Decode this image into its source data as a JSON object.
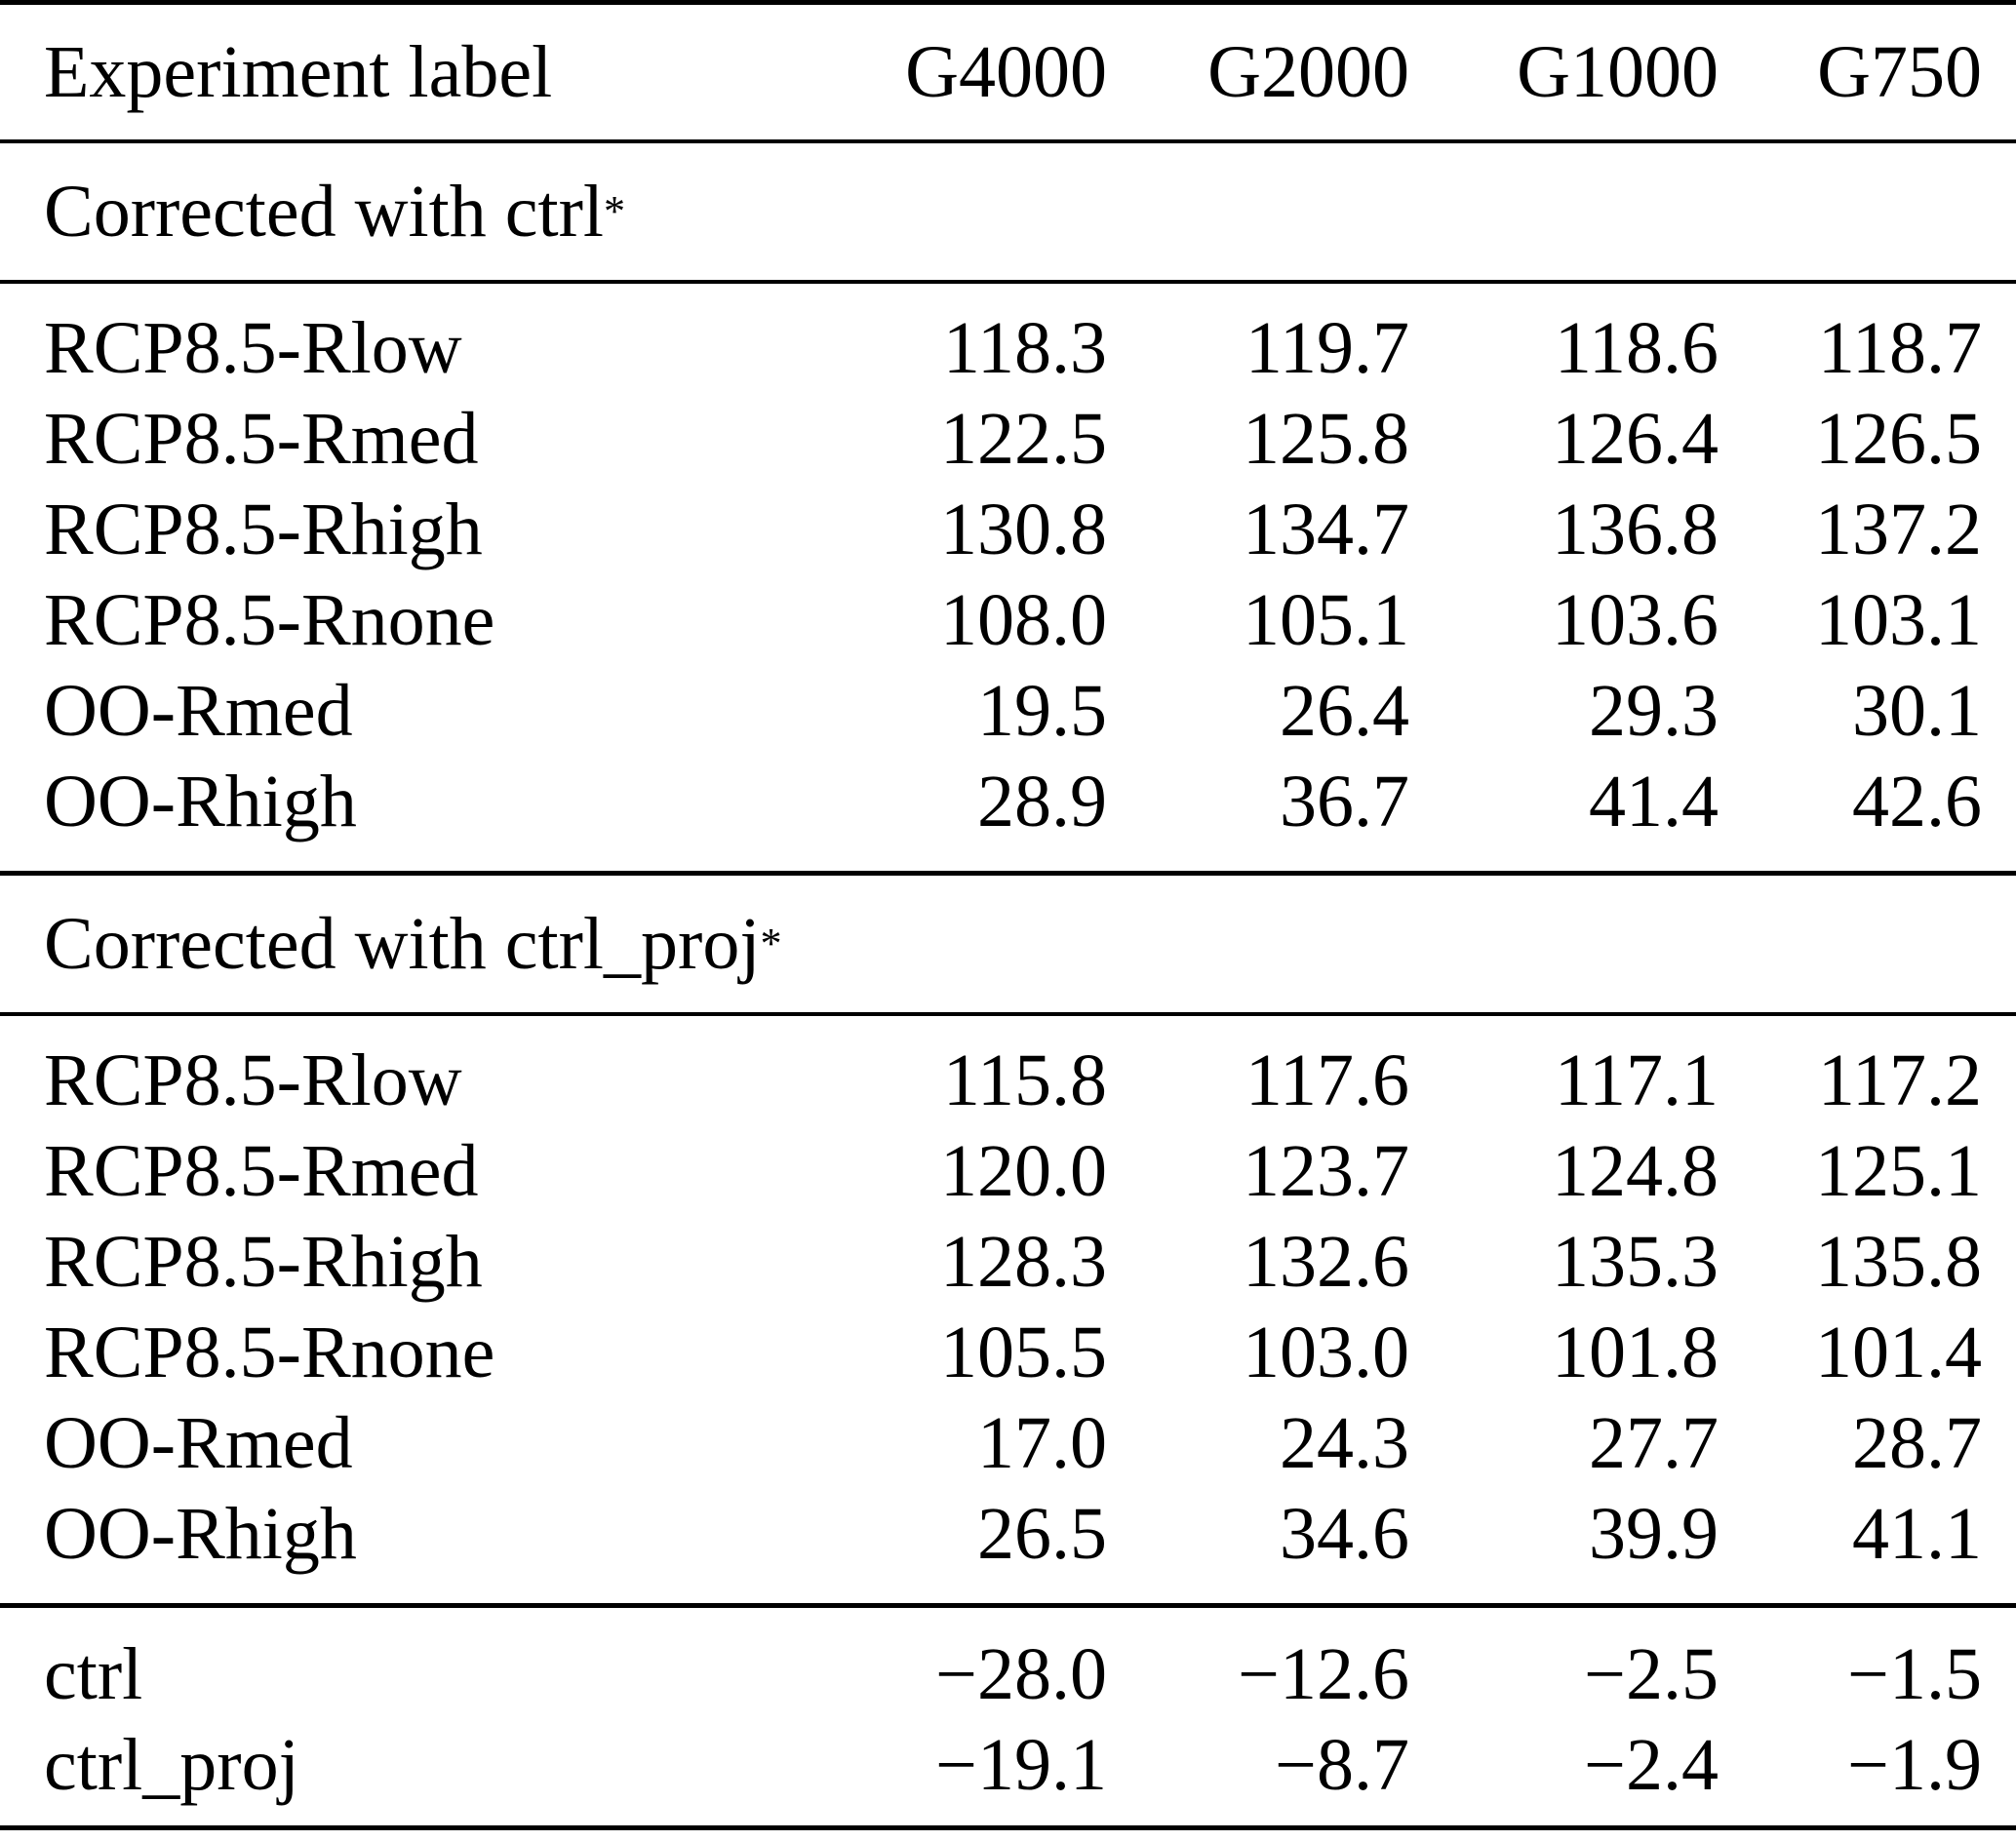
{
  "table": {
    "header": {
      "label": "Experiment label",
      "columns": [
        "G4000",
        "G2000",
        "G1000",
        "G750"
      ]
    },
    "sections": [
      {
        "title": "Corrected with ctrl",
        "footnote_marker": "*",
        "rows": [
          {
            "label": "RCP8.5-Rlow",
            "values": [
              "118.3",
              "119.7",
              "118.6",
              "118.7"
            ]
          },
          {
            "label": "RCP8.5-Rmed",
            "values": [
              "122.5",
              "125.8",
              "126.4",
              "126.5"
            ]
          },
          {
            "label": "RCP8.5-Rhigh",
            "values": [
              "130.8",
              "134.7",
              "136.8",
              "137.2"
            ]
          },
          {
            "label": "RCP8.5-Rnone",
            "values": [
              "108.0",
              "105.1",
              "103.6",
              "103.1"
            ]
          },
          {
            "label": "OO-Rmed",
            "values": [
              "19.5",
              "26.4",
              "29.3",
              "30.1"
            ]
          },
          {
            "label": "OO-Rhigh",
            "values": [
              "28.9",
              "36.7",
              "41.4",
              "42.6"
            ]
          }
        ]
      },
      {
        "title": "Corrected with ctrl_proj",
        "footnote_marker": "*",
        "rows": [
          {
            "label": "RCP8.5-Rlow",
            "values": [
              "115.8",
              "117.6",
              "117.1",
              "117.2"
            ]
          },
          {
            "label": "RCP8.5-Rmed",
            "values": [
              "120.0",
              "123.7",
              "124.8",
              "125.1"
            ]
          },
          {
            "label": "RCP8.5-Rhigh",
            "values": [
              "128.3",
              "132.6",
              "135.3",
              "135.8"
            ]
          },
          {
            "label": "RCP8.5-Rnone",
            "values": [
              "105.5",
              "103.0",
              "101.8",
              "101.4"
            ]
          },
          {
            "label": "OO-Rmed",
            "values": [
              "17.0",
              "24.3",
              "27.7",
              "28.7"
            ]
          },
          {
            "label": "OO-Rhigh",
            "values": [
              "26.5",
              "34.6",
              "39.9",
              "41.1"
            ]
          }
        ]
      },
      {
        "title": null,
        "rows": [
          {
            "label": "ctrl",
            "values": [
              "−28.0",
              "−12.6",
              "−2.5",
              "−1.5"
            ]
          },
          {
            "label": "ctrl_proj",
            "values": [
              "−19.1",
              "−8.7",
              "−2.4",
              "−1.9"
            ]
          }
        ]
      }
    ]
  }
}
